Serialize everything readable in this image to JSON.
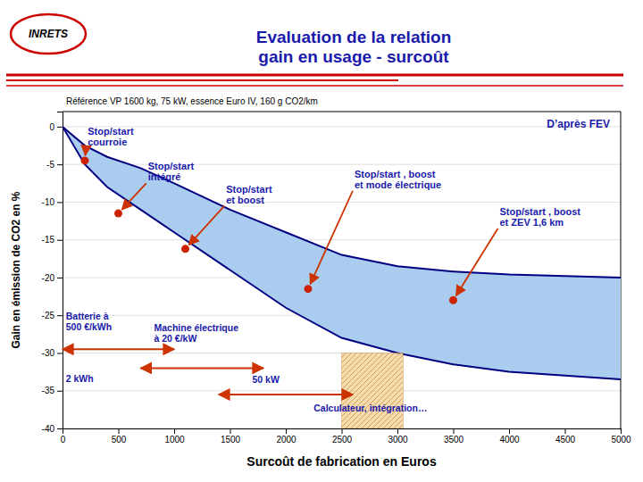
{
  "chart_data": {
    "type": "area",
    "title": "Evaluation de la relation\ngain en usage - surcoût",
    "subtitle": "Référence VP 1600 kg, 75 kW, essence Euro IV, 160 g CO2/km",
    "xlabel": "Surcоût de fabrication en Euros",
    "ylabel": "Gain en émission de CO2 en %",
    "x": [
      0,
      200,
      400,
      700,
      1000,
      1500,
      2000,
      2500,
      3000,
      3500,
      4000,
      5000
    ],
    "series": [
      {
        "values": [
          0,
          -2.5,
          -4,
          -5.5,
          -7.5,
          -11,
          -14,
          -17,
          -18.5,
          -19.2,
          -19.6,
          -20
        ],
        "color": "#000080"
      },
      {
        "values": [
          0,
          -5,
          -8,
          -11,
          -14,
          -19,
          -24,
          -28,
          -30,
          -31.5,
          -32.5,
          -33.5
        ],
        "color": "#000080"
      }
    ],
    "color": "#aaccee",
    "xlim": [
      0,
      5000
    ],
    "ylim": [
      -40,
      2
    ],
    "xticks": [
      0,
      500,
      1000,
      1500,
      2000,
      2500,
      3000,
      3500,
      4000,
      4500,
      5000
    ],
    "yticks": [
      0,
      -5,
      -10,
      -15,
      -20,
      -25,
      -30,
      -35,
      -40
    ],
    "grid": true,
    "points": [
      {
        "x": 200,
        "y": -4.5,
        "label": "Stop/start\ncourroie",
        "label_x": 210,
        "label_y": -2.8,
        "color": "#cc2200"
      },
      {
        "x": 500,
        "y": -11.5,
        "label": "Stop/start\nintégré",
        "label_x": 750,
        "label_y": -7.5,
        "color": "#cc2200"
      },
      {
        "x": 1100,
        "y": -16.2,
        "label": "Stop/start\net boost",
        "label_x": 1450,
        "label_y": -10.5,
        "color": "#cc2200"
      },
      {
        "x": 2200,
        "y": -21.5,
        "label": "Stop/start , boost\net mode électrique",
        "label_x": 2600,
        "label_y": -8.5,
        "color": "#cc2200"
      },
      {
        "x": 3500,
        "y": -23.0,
        "label": "Stop/start , boost\net ZEV 1,6 km",
        "label_x": 3900,
        "label_y": -13.5,
        "color": "#cc2200"
      }
    ],
    "annotations": {
      "color": "#1a1aaa",
      "arrow_color": "#cc3300",
      "source": "D’après FEV",
      "logo": "INRETS",
      "texts": [
        {
          "text": "Batterie à\n500 €/kWh",
          "x": 30,
          "y": -27.0
        },
        {
          "text": "2 kWh",
          "x": 30,
          "y": -33.8
        },
        {
          "text": "Machine électrique\nà 20 €/kW",
          "x": 820,
          "y": -28.5
        },
        {
          "text": "50 kW",
          "x": 1700,
          "y": -34.0
        },
        {
          "text": "Calculateur, intégration…",
          "x": 2250,
          "y": -37.8
        }
      ],
      "spans": [
        {
          "x0": 0,
          "x1": 1000,
          "y": -29.5
        },
        {
          "x0": 700,
          "x1": 1800,
          "y": -32.0
        },
        {
          "x0": 1400,
          "x1": 2600,
          "y": -35.5
        }
      ],
      "hatch": {
        "x": 2500,
        "y": -40,
        "width": 550,
        "height": 10
      }
    }
  }
}
